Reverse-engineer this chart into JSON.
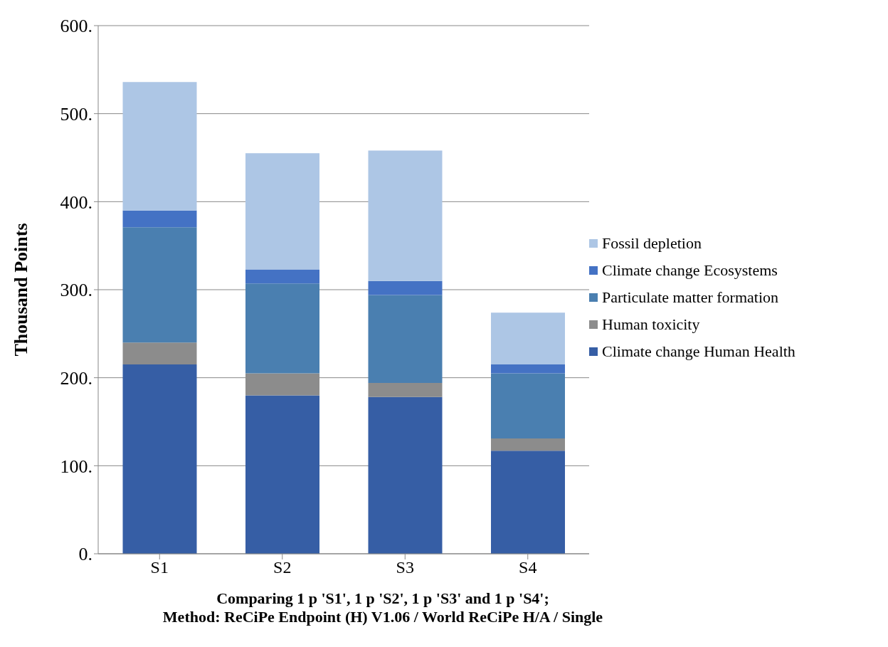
{
  "chart_data": {
    "type": "bar",
    "stacked": true,
    "xlabel": "Comparing 1 p 'S1', 1 p 'S2', 1 p 'S3' and 1 p 'S4';\nMethod: ReCiPe Endpoint (H) V1.06 / World ReCiPe H/A / Single",
    "ylabel": "Thousand Points",
    "categories": [
      "S1",
      "S2",
      "S3",
      "S4"
    ],
    "series": [
      {
        "name": "Climate change Human Health",
        "color": "#365ea5",
        "values": [
          215,
          180,
          178,
          117
        ]
      },
      {
        "name": "Human toxicity",
        "color": "#8c8c8c",
        "values": [
          25,
          25,
          16,
          14
        ]
      },
      {
        "name": "Particulate matter formation",
        "color": "#4a7fb0",
        "values": [
          131,
          102,
          100,
          74
        ]
      },
      {
        "name": "Climate change Ecosystems",
        "color": "#4472c4",
        "values": [
          19,
          16,
          16,
          10
        ]
      },
      {
        "name": "Fossil depletion",
        "color": "#adc6e5",
        "values": [
          146,
          132,
          148,
          59
        ]
      }
    ],
    "ylim": [
      0,
      600
    ],
    "yticks": [
      {
        "value": 0,
        "label": "0."
      },
      {
        "value": 100,
        "label": "100."
      },
      {
        "value": 200,
        "label": "200."
      },
      {
        "value": 300,
        "label": "300."
      },
      {
        "value": 400,
        "label": "400."
      },
      {
        "value": 500,
        "label": "500."
      },
      {
        "value": 600,
        "label": "600."
      }
    ],
    "grid": "y",
    "legend": "right"
  }
}
